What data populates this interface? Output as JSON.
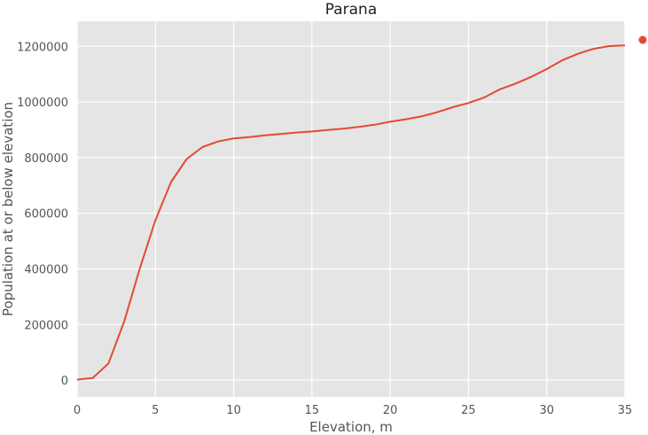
{
  "colors": {
    "panel_background": "#e5e5e5",
    "grid": "#ffffff",
    "series": "#e24a33",
    "text": "#555555",
    "title": "#222222"
  },
  "chart_data": {
    "type": "line",
    "title": "Parana",
    "xlabel": "Elevation, m",
    "ylabel": "Population at or below elevation",
    "xlim": [
      0,
      35
    ],
    "ylim": [
      -60000,
      1290000
    ],
    "xticks": [
      0,
      5,
      10,
      15,
      20,
      25,
      30,
      35
    ],
    "xtick_labels": [
      "0",
      "5",
      "10",
      "15",
      "20",
      "25",
      "30",
      "35"
    ],
    "yticks": [
      0,
      200000,
      400000,
      600000,
      800000,
      1000000,
      1200000
    ],
    "ytick_labels": [
      "0",
      "200000",
      "400000",
      "600000",
      "800000",
      "1000000",
      "1200000"
    ],
    "grid": true,
    "series": [
      {
        "x": [
          0,
          1,
          2,
          3,
          4,
          5,
          6,
          7,
          8,
          9,
          10,
          11,
          12,
          13,
          14,
          15,
          16,
          17,
          18,
          19,
          20,
          21,
          22,
          23,
          24,
          25,
          26,
          27,
          28,
          29,
          30,
          31,
          32,
          33,
          34,
          35
        ],
        "y": [
          2000,
          8000,
          60000,
          210000,
          400000,
          575000,
          712000,
          795000,
          838000,
          858000,
          869000,
          874000,
          880000,
          885000,
          890000,
          894000,
          899000,
          904000,
          910000,
          918000,
          929000,
          938000,
          948000,
          963000,
          981000,
          996000,
          1016000,
          1045000,
          1066000,
          1090000,
          1118000,
          1150000,
          1173000,
          1191000,
          1201000,
          1203000
        ]
      }
    ],
    "legend_marker": {
      "location": "right-of-plot"
    }
  }
}
